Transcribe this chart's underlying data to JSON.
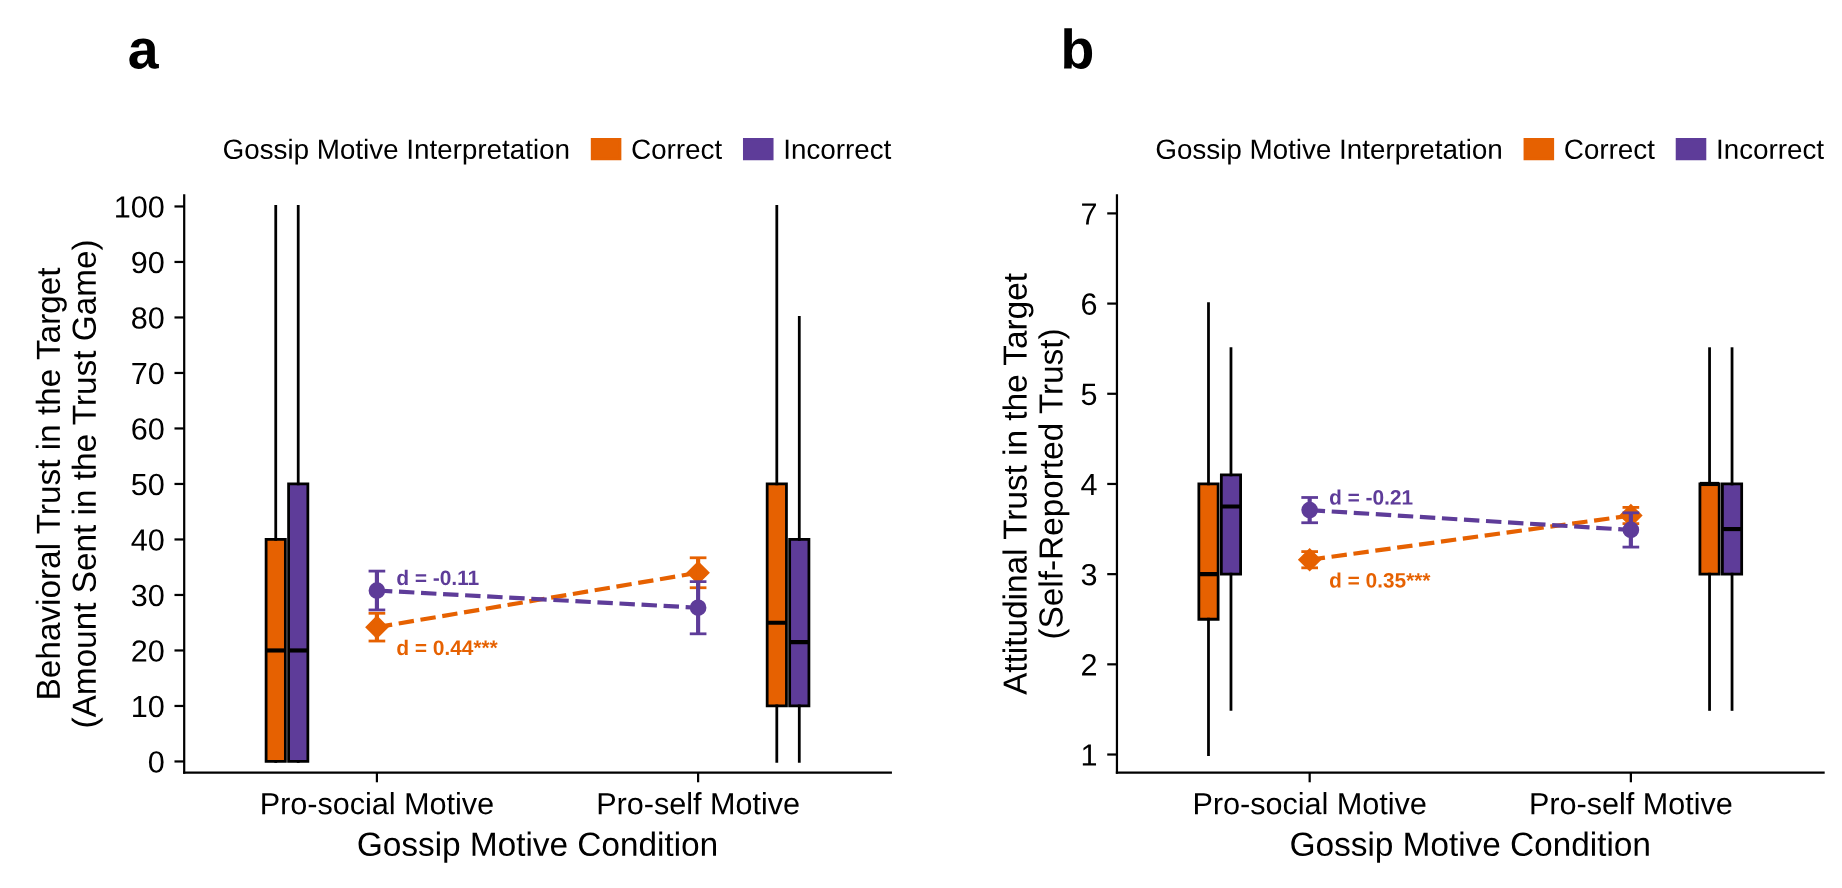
{
  "chart_data": [
    {
      "type": "box",
      "title": "a",
      "xlabel": "Gossip Motive Condition",
      "ylabel": "Behavioral Trust in the Target\n(Amount Sent in the Trust Game)",
      "legend_title": "Gossip Motive Interpretation",
      "legend": "top",
      "grid": false,
      "categories": [
        "Pro-social Motive",
        "Pro-self Motive"
      ],
      "ylim": [
        -2,
        102
      ],
      "yticks": [
        0,
        10,
        20,
        30,
        40,
        50,
        60,
        70,
        80,
        90,
        100
      ],
      "series": [
        {
          "name": "Correct",
          "type": "box",
          "color": "#e66101",
          "boxes": [
            {
              "low": 0,
              "q1": 0,
              "median": 20,
              "q3": 40,
              "high": 100
            },
            {
              "low": 0,
              "q1": 10,
              "median": 25,
              "q3": 50,
              "high": 100
            }
          ]
        },
        {
          "name": "Incorrect",
          "type": "box",
          "color": "#5e3c99",
          "boxes": [
            {
              "low": 0,
              "q1": 0,
              "median": 20,
              "q3": 50,
              "high": 100
            },
            {
              "low": 0,
              "q1": 10,
              "median": 21.5,
              "q3": 40,
              "high": 80
            }
          ]
        },
        {
          "type": "line",
          "color": "#e66101",
          "marker": "diamond",
          "line_style": "dashed",
          "values": [
            24.2,
            34
          ],
          "errors": [
            2.5,
            2.7
          ]
        },
        {
          "type": "line",
          "color": "#5e3c99",
          "marker": "circle",
          "line_style": "dashed",
          "values": [
            30.8,
            27.7
          ],
          "errors": [
            3.5,
            4.7
          ]
        }
      ],
      "annotations": [
        {
          "text": "d = -0.11",
          "x": "Pro-social Motive",
          "y": 30.8
        },
        {
          "text": "d = 0.44***",
          "x": "Pro-social Motive",
          "y": 24.2
        }
      ]
    },
    {
      "type": "box",
      "title": "b",
      "xlabel": "Gossip Motive Condition",
      "ylabel": "Attitudinal Trust in the Target\n(Self-Reported Trust)",
      "legend_title": "Gossip Motive Interpretation",
      "legend": "top",
      "grid": false,
      "categories": [
        "Pro-social Motive",
        "Pro-self Motive"
      ],
      "ylim": [
        0.8,
        7.2
      ],
      "yticks": [
        1,
        2,
        3,
        4,
        5,
        6,
        7
      ],
      "series": [
        {
          "name": "Correct",
          "type": "box",
          "color": "#e66101",
          "boxes": [
            {
              "low": 1,
              "q1": 2.5,
              "median": 3,
              "q3": 4,
              "high": 6
            },
            {
              "low": 1.5,
              "q1": 3,
              "median": 4,
              "q3": 4,
              "high": 5.5
            }
          ]
        },
        {
          "name": "Incorrect",
          "type": "box",
          "color": "#5e3c99",
          "boxes": [
            {
              "low": 1.5,
              "q1": 3,
              "median": 3.75,
              "q3": 4.1,
              "high": 5.5
            },
            {
              "low": 1.5,
              "q1": 3,
              "median": 3.5,
              "q3": 4,
              "high": 5.5
            }
          ]
        },
        {
          "type": "line",
          "color": "#e66101",
          "marker": "diamond",
          "line_style": "dashed",
          "values": [
            3.16,
            3.65
          ],
          "errors": [
            0.09,
            0.09
          ]
        },
        {
          "type": "line",
          "color": "#5e3c99",
          "marker": "circle",
          "line_style": "dashed",
          "values": [
            3.71,
            3.49
          ],
          "errors": [
            0.14,
            0.19
          ]
        }
      ],
      "annotations": [
        {
          "text": "d = -0.21",
          "x": "Pro-social Motive",
          "y": 3.71
        },
        {
          "text": "d = 0.35***",
          "x": "Pro-social Motive",
          "y": 3.16
        }
      ]
    }
  ]
}
